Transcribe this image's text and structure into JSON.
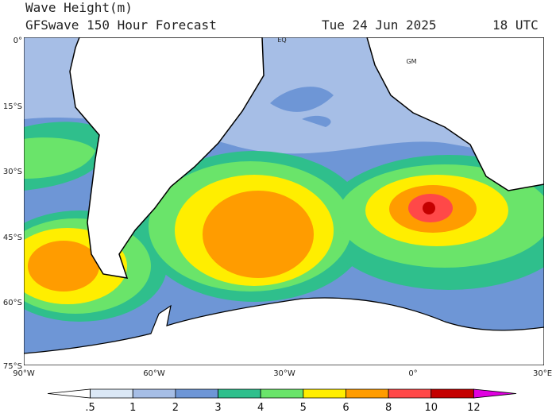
{
  "header": {
    "title": "Wave Height(m)",
    "subtitle": "GFSwave 150 Hour Forecast",
    "date": "Tue 24 Jun 2025",
    "time": "18 UTC"
  },
  "map": {
    "lat_labels": [
      "0°",
      "15°S",
      "30°S",
      "45°S",
      "60°S",
      "75°S"
    ],
    "lon_labels": [
      "90°W",
      "60°W",
      "30°W",
      "0°",
      "30°E"
    ],
    "place_labels": [
      "EQ",
      "GM"
    ]
  },
  "colorbar": {
    "labels": [
      ".5",
      "1",
      "2",
      "3",
      "4",
      "5",
      "6",
      "8",
      "10",
      "12"
    ],
    "colors": [
      "#ffffff",
      "#dbe8f6",
      "#a6bee6",
      "#6e96d6",
      "#2fbf8c",
      "#6ae46a",
      "#ffee00",
      "#ff9c00",
      "#ff4848",
      "#c40000",
      "#e000e0"
    ]
  }
}
